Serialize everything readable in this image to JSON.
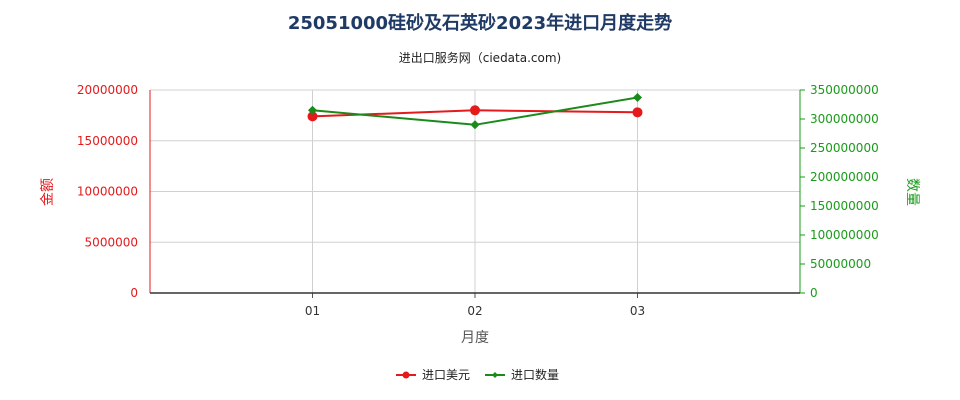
{
  "chart_data": {
    "type": "line",
    "title": "25051000硅砂及石英砂2023年进口月度走势",
    "subtitle": "进出口服务网（ciedata.com)",
    "xlabel": "月度",
    "ylabel_left": "金额",
    "ylabel_right": "数量",
    "categories": [
      "01",
      "02",
      "03"
    ],
    "y_left": {
      "min": 0,
      "max": 20000000,
      "ticks": [
        0,
        5000000,
        10000000,
        15000000,
        20000000
      ]
    },
    "y_right": {
      "min": 0,
      "max": 350000000,
      "ticks": [
        0,
        50000000,
        100000000,
        150000000,
        200000000,
        250000000,
        300000000,
        350000000
      ]
    },
    "series": [
      {
        "name": "进口美元",
        "axis": "left",
        "color": "#e41a1c",
        "marker": "circle",
        "values": [
          17400000,
          18000000,
          17800000
        ]
      },
      {
        "name": "进口数量",
        "axis": "right",
        "color": "#1a8a1a",
        "marker": "diamond",
        "values": [
          315000000,
          290000000,
          337000000
        ]
      }
    ],
    "grid": true,
    "legend_position": "bottom-center"
  },
  "colors": {
    "left_axis": "#e41a1c",
    "right_axis": "#1a9b1a",
    "grid": "#d0d0d0"
  }
}
